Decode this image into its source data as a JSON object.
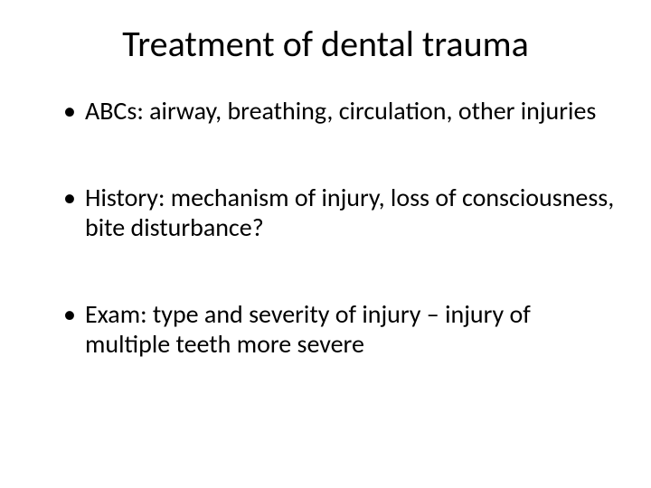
{
  "slide": {
    "title": "Treatment of dental trauma",
    "bullets": [
      "ABCs: airway, breathing, circulation, other injuries",
      "History: mechanism of injury, loss of consciousness, bite disturbance?",
      "Exam: type and severity of injury – injury of multiple teeth more severe"
    ]
  },
  "styling": {
    "background_color": "#ffffff",
    "text_color": "#000000",
    "title_fontsize": 40,
    "title_fontweight": 400,
    "body_fontsize": 28,
    "font_family": "Calibri",
    "bullet_char": "•",
    "slide_width": 720,
    "slide_height": 540
  }
}
